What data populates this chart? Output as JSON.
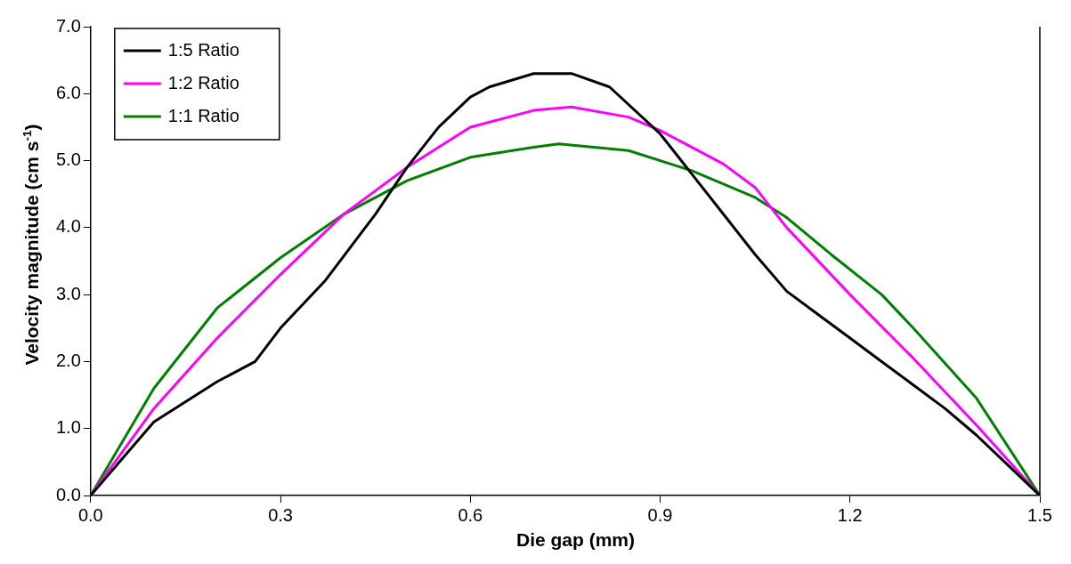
{
  "chart_data": {
    "type": "line",
    "xlabel": "Die gap (mm)",
    "ylabel": "Velocity magnitude (cm s$^{-1}$)",
    "xlim": [
      0,
      1.5
    ],
    "xticks": [
      {
        "value": 0,
        "label": "0.0"
      },
      {
        "value": 0.3,
        "label": "0.3"
      },
      {
        "value": 0.6,
        "label": "0.6"
      },
      {
        "value": 0.9,
        "label": "0.9"
      },
      {
        "value": 1.2,
        "label": "1.2"
      },
      {
        "value": 1.5,
        "label": "1.5"
      }
    ],
    "ylim": [
      0,
      7
    ],
    "yticks": [
      {
        "value": 0,
        "label": "0.0"
      },
      {
        "value": 1,
        "label": "1.0"
      },
      {
        "value": 2,
        "label": "2.0"
      },
      {
        "value": 3,
        "label": "3.0"
      },
      {
        "value": 4,
        "label": "4.0"
      },
      {
        "value": 5,
        "label": "5.0"
      },
      {
        "value": 6,
        "label": "6.0"
      },
      {
        "value": 7,
        "label": "7.0"
      }
    ],
    "grid": false,
    "legend": "top left",
    "marker": "none",
    "line_style": "solid",
    "series": [
      {
        "name": "1:5 Ratio",
        "color": "#000000",
        "x": [
          0,
          0.1,
          0.2,
          0.26,
          0.3,
          0.37,
          0.45,
          0.5,
          0.55,
          0.6,
          0.63,
          0.7,
          0.76,
          0.82,
          0.9,
          0.95,
          1.0,
          1.05,
          1.1,
          1.15,
          1.2,
          1.25,
          1.3,
          1.35,
          1.4,
          1.45,
          1.5
        ],
        "values": [
          0,
          1.1,
          1.7,
          2.0,
          2.5,
          3.2,
          4.2,
          4.9,
          5.5,
          5.95,
          6.1,
          6.3,
          6.3,
          6.1,
          5.4,
          4.8,
          4.2,
          3.6,
          3.05,
          2.7,
          2.35,
          2.0,
          1.65,
          1.3,
          0.9,
          0.45,
          0
        ]
      },
      {
        "name": "1:2 Ratio",
        "color": "#ff00ff",
        "x": [
          0,
          0.1,
          0.2,
          0.3,
          0.4,
          0.5,
          0.6,
          0.7,
          0.76,
          0.85,
          0.9,
          1.0,
          1.05,
          1.1,
          1.2,
          1.3,
          1.4,
          1.5
        ],
        "values": [
          0,
          1.3,
          2.35,
          3.3,
          4.2,
          4.9,
          5.5,
          5.75,
          5.8,
          5.65,
          5.45,
          4.95,
          4.6,
          4.0,
          3.0,
          2.05,
          1.05,
          0
        ]
      },
      {
        "name": "1:1 Ratio",
        "color": "#008000",
        "x": [
          0,
          0.1,
          0.2,
          0.3,
          0.4,
          0.5,
          0.6,
          0.7,
          0.74,
          0.85,
          0.95,
          1.05,
          1.1,
          1.17,
          1.25,
          1.3,
          1.4,
          1.5
        ],
        "values": [
          0,
          1.6,
          2.8,
          3.55,
          4.2,
          4.7,
          5.05,
          5.2,
          5.25,
          5.15,
          4.85,
          4.45,
          4.15,
          3.6,
          3.0,
          2.5,
          1.45,
          0
        ]
      }
    ]
  }
}
